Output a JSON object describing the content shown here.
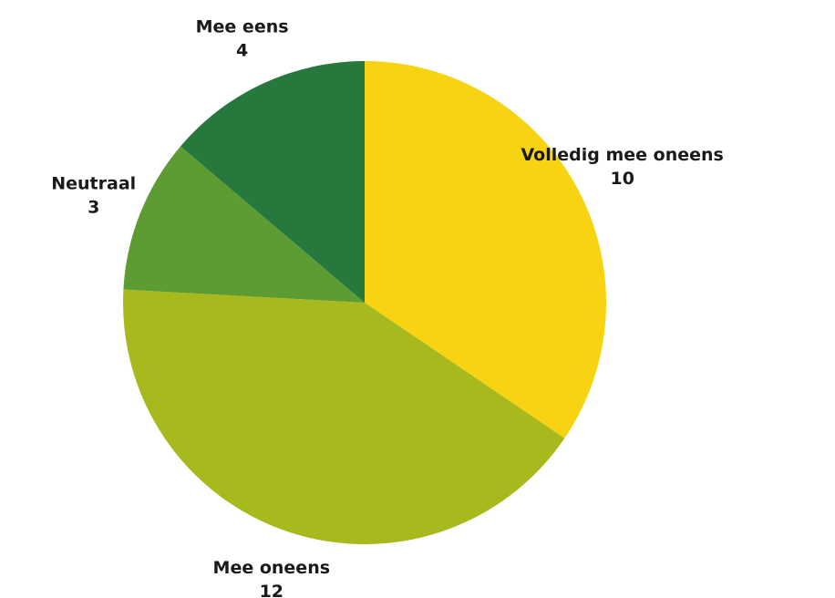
{
  "chart_data": {
    "type": "pie",
    "title": "",
    "start_angle_deg": 0,
    "direction": "clockwise",
    "slices": [
      {
        "label": "Volledig mee oneens",
        "value": 10,
        "color": "#f7d312"
      },
      {
        "label": "Mee oneens",
        "value": 12,
        "color": "#a8b91d"
      },
      {
        "label": "Neutraal",
        "value": 3,
        "color": "#5d9c33"
      },
      {
        "label": "Mee eens",
        "value": 4,
        "color": "#27783d"
      }
    ]
  }
}
